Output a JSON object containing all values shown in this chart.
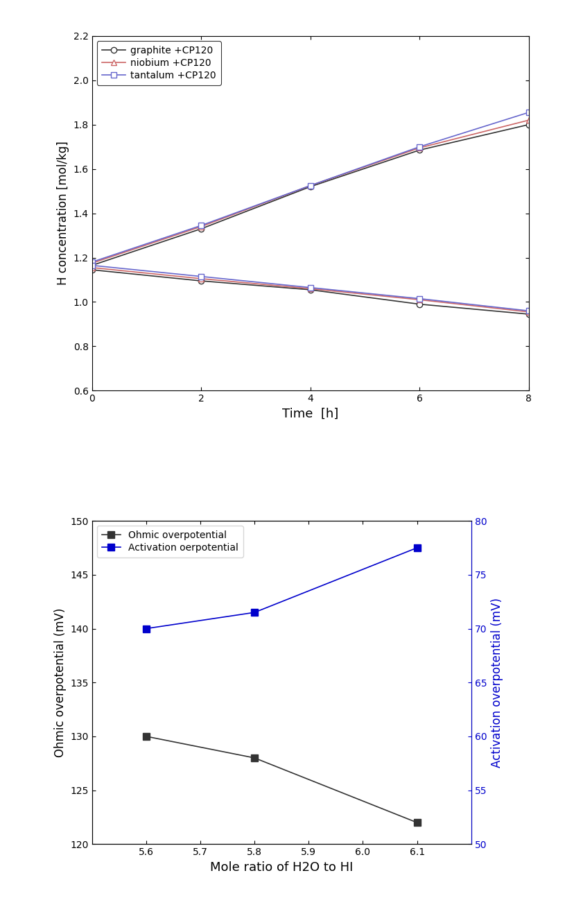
{
  "top": {
    "xlabel": "Time  [h]",
    "ylabel": "H concentration [mol/kg]",
    "xlim": [
      0,
      8
    ],
    "ylim": [
      0.6,
      2.2
    ],
    "xticks": [
      0,
      2,
      4,
      6,
      8
    ],
    "yticks": [
      0.6,
      0.8,
      1.0,
      1.2,
      1.4,
      1.6,
      1.8,
      2.0,
      2.2
    ],
    "time": [
      0,
      2,
      4,
      6,
      8
    ],
    "graphite_up": [
      1.165,
      1.33,
      1.52,
      1.685,
      1.8
    ],
    "niobium_up": [
      1.175,
      1.34,
      1.525,
      1.695,
      1.82
    ],
    "tantalum_up": [
      1.18,
      1.345,
      1.525,
      1.7,
      1.855
    ],
    "graphite_dn": [
      1.145,
      1.095,
      1.055,
      0.99,
      0.945
    ],
    "niobium_dn": [
      1.155,
      1.105,
      1.06,
      1.01,
      0.955
    ],
    "tantalum_dn": [
      1.165,
      1.115,
      1.065,
      1.015,
      0.96
    ],
    "graphite_color": "#333333",
    "niobium_color": "#cc6666",
    "tantalum_color": "#6666cc",
    "legend_labels": [
      "graphite +CP120",
      "niobium +CP120",
      "tantalum +CP120"
    ],
    "graphite_marker": "o",
    "niobium_marker": "^",
    "tantalum_marker": "s"
  },
  "bottom": {
    "xlabel": "Mole ratio of H2O to HI",
    "ylabel_left": "Ohmic overpotential (mV)",
    "ylabel_right": "Activation overpotential (mV)",
    "xlim": [
      5.5,
      6.2
    ],
    "ylim_left": [
      120,
      150
    ],
    "ylim_right": [
      50,
      80
    ],
    "xticks": [
      5.6,
      5.7,
      5.8,
      5.9,
      6.0,
      6.1
    ],
    "yticks_left": [
      120,
      125,
      130,
      135,
      140,
      145,
      150
    ],
    "yticks_right": [
      50,
      55,
      60,
      65,
      70,
      75,
      80
    ],
    "x": [
      5.6,
      5.8,
      6.1
    ],
    "ohmic": [
      130,
      128,
      122
    ],
    "activation": [
      70.0,
      71.5,
      77.5
    ],
    "ohmic_color": "#333333",
    "activation_color": "#0000cc",
    "legend_ohmic": "Ohmic overpotential",
    "legend_activation": "Activation oerpotential"
  }
}
